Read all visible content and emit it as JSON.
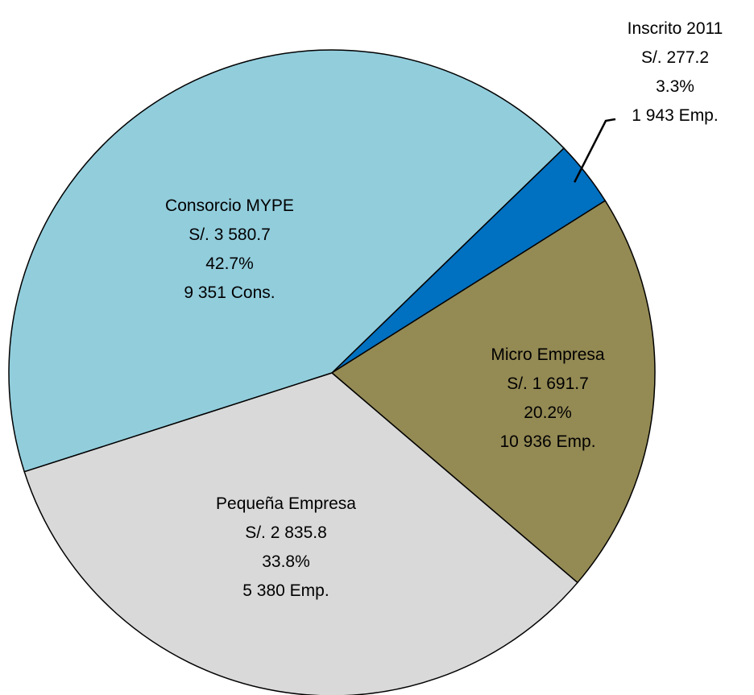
{
  "chart_data": {
    "type": "pie",
    "categories": [
      "Inscrito 2011",
      "Micro Empresa",
      "Pequeña Empresa",
      "Consorcio MYPE"
    ],
    "values": [
      3.3,
      20.2,
      33.8,
      42.7
    ],
    "value_labels": [
      "3.3%",
      "20.2%",
      "33.8%",
      "42.7%"
    ],
    "amounts": [
      "S/. 277.2",
      "S/. 1 691.7",
      "S/. 2 835.8",
      "S/. 3 580.7"
    ],
    "counts": [
      "1 943 Emp.",
      "10 936 Emp.",
      "5 380 Emp.",
      "9 351 Cons."
    ],
    "colors": [
      "#0070c0",
      "#948a54",
      "#d9d9d9",
      "#92cddc"
    ]
  }
}
